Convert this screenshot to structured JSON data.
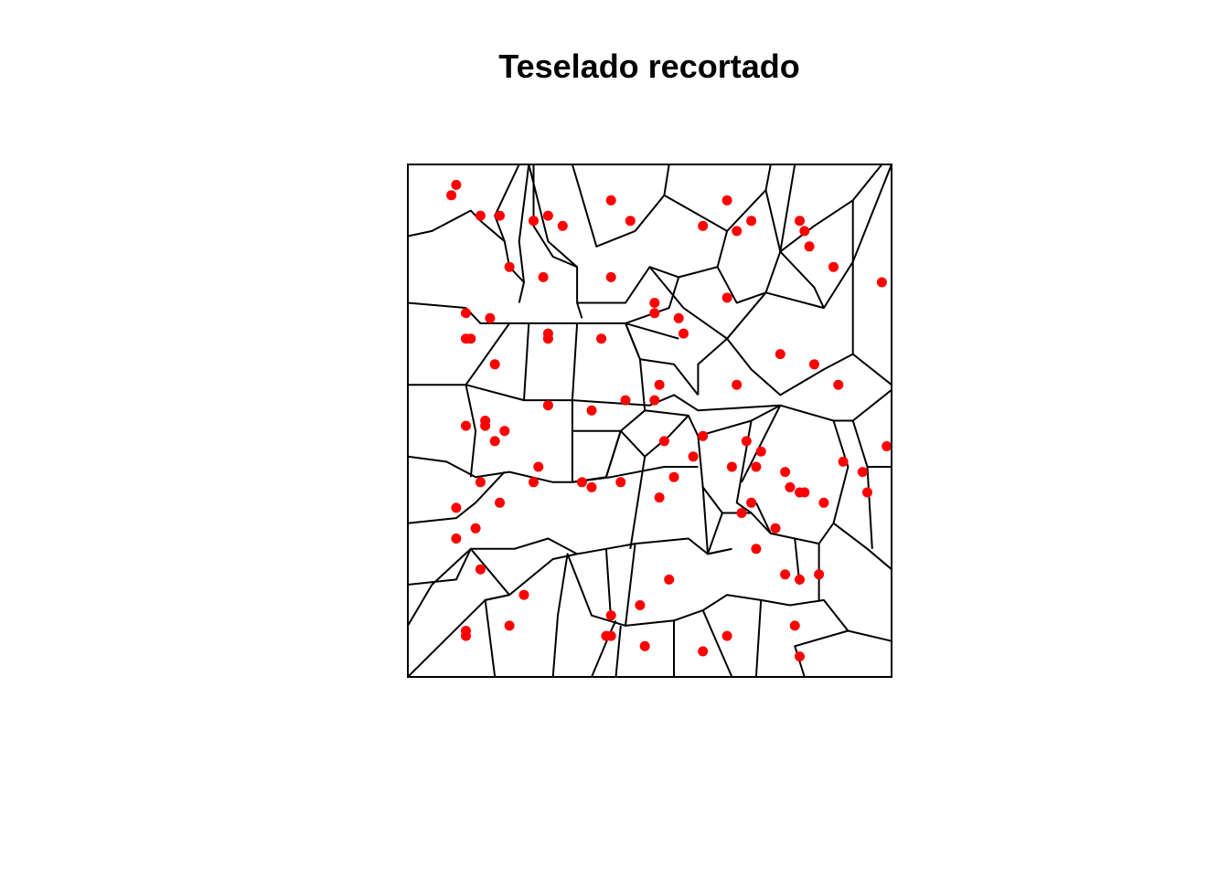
{
  "chart_data": {
    "type": "scatter",
    "title": "Teselado recortado",
    "xlabel": "",
    "ylabel": "",
    "xlim": [
      0,
      1
    ],
    "ylim": [
      0,
      1
    ],
    "axes_visible": false,
    "grid": false,
    "legend": "none",
    "point_color": "#ff0000",
    "edge_color": "#000000",
    "points": [
      [
        0.1,
        0.96
      ],
      [
        0.09,
        0.94
      ],
      [
        0.15,
        0.9
      ],
      [
        0.19,
        0.9
      ],
      [
        0.26,
        0.89
      ],
      [
        0.29,
        0.9
      ],
      [
        0.32,
        0.88
      ],
      [
        0.42,
        0.93
      ],
      [
        0.46,
        0.89
      ],
      [
        0.66,
        0.93
      ],
      [
        0.61,
        0.88
      ],
      [
        0.68,
        0.87
      ],
      [
        0.71,
        0.89
      ],
      [
        0.81,
        0.89
      ],
      [
        0.82,
        0.87
      ],
      [
        0.83,
        0.84
      ],
      [
        0.21,
        0.8
      ],
      [
        0.28,
        0.78
      ],
      [
        0.42,
        0.78
      ],
      [
        0.88,
        0.8
      ],
      [
        0.98,
        0.77
      ],
      [
        0.12,
        0.71
      ],
      [
        0.17,
        0.7
      ],
      [
        0.51,
        0.73
      ],
      [
        0.51,
        0.71
      ],
      [
        0.56,
        0.7
      ],
      [
        0.66,
        0.74
      ],
      [
        0.29,
        0.67
      ],
      [
        0.29,
        0.66
      ],
      [
        0.4,
        0.66
      ],
      [
        0.12,
        0.66
      ],
      [
        0.13,
        0.66
      ],
      [
        0.57,
        0.67
      ],
      [
        0.77,
        0.63
      ],
      [
        0.84,
        0.61
      ],
      [
        0.18,
        0.61
      ],
      [
        0.68,
        0.57
      ],
      [
        0.89,
        0.57
      ],
      [
        0.52,
        0.57
      ],
      [
        0.51,
        0.54
      ],
      [
        0.29,
        0.53
      ],
      [
        0.38,
        0.52
      ],
      [
        0.45,
        0.54
      ],
      [
        0.12,
        0.49
      ],
      [
        0.16,
        0.5
      ],
      [
        0.16,
        0.49
      ],
      [
        0.2,
        0.48
      ],
      [
        0.18,
        0.46
      ],
      [
        0.53,
        0.46
      ],
      [
        0.61,
        0.47
      ],
      [
        0.7,
        0.46
      ],
      [
        0.73,
        0.44
      ],
      [
        0.99,
        0.45
      ],
      [
        0.27,
        0.41
      ],
      [
        0.59,
        0.43
      ],
      [
        0.67,
        0.41
      ],
      [
        0.72,
        0.41
      ],
      [
        0.78,
        0.4
      ],
      [
        0.9,
        0.42
      ],
      [
        0.94,
        0.4
      ],
      [
        0.15,
        0.38
      ],
      [
        0.26,
        0.38
      ],
      [
        0.36,
        0.38
      ],
      [
        0.38,
        0.37
      ],
      [
        0.44,
        0.38
      ],
      [
        0.55,
        0.39
      ],
      [
        0.79,
        0.37
      ],
      [
        0.81,
        0.36
      ],
      [
        0.82,
        0.36
      ],
      [
        0.95,
        0.36
      ],
      [
        0.1,
        0.33
      ],
      [
        0.19,
        0.34
      ],
      [
        0.52,
        0.35
      ],
      [
        0.71,
        0.34
      ],
      [
        0.86,
        0.34
      ],
      [
        0.69,
        0.32
      ],
      [
        0.14,
        0.29
      ],
      [
        0.1,
        0.27
      ],
      [
        0.76,
        0.29
      ],
      [
        0.72,
        0.25
      ],
      [
        0.15,
        0.21
      ],
      [
        0.54,
        0.19
      ],
      [
        0.78,
        0.2
      ],
      [
        0.81,
        0.19
      ],
      [
        0.85,
        0.2
      ],
      [
        0.24,
        0.16
      ],
      [
        0.48,
        0.14
      ],
      [
        0.42,
        0.12
      ],
      [
        0.12,
        0.09
      ],
      [
        0.21,
        0.1
      ],
      [
        0.12,
        0.08
      ],
      [
        0.41,
        0.08
      ],
      [
        0.42,
        0.08
      ],
      [
        0.66,
        0.08
      ],
      [
        0.8,
        0.1
      ],
      [
        0.49,
        0.06
      ],
      [
        0.61,
        0.05
      ],
      [
        0.81,
        0.04
      ]
    ],
    "edges": [
      [
        [
          0.0,
          0.86
        ],
        [
          0.05,
          0.87
        ],
        [
          0.13,
          0.91
        ],
        [
          0.15,
          0.89
        ],
        [
          0.2,
          0.85
        ]
      ],
      [
        [
          0.0,
          0.73
        ],
        [
          0.12,
          0.72
        ],
        [
          0.15,
          0.69
        ],
        [
          0.21,
          0.69
        ],
        [
          0.25,
          0.69
        ],
        [
          0.35,
          0.69
        ],
        [
          0.45,
          0.69
        ],
        [
          0.56,
          0.66
        ]
      ],
      [
        [
          0.0,
          0.57
        ],
        [
          0.12,
          0.57
        ],
        [
          0.24,
          0.54
        ],
        [
          0.34,
          0.54
        ],
        [
          0.5,
          0.53
        ],
        [
          0.55,
          0.55
        ],
        [
          0.6,
          0.52
        ],
        [
          0.77,
          0.53
        ],
        [
          0.88,
          0.5
        ],
        [
          0.92,
          0.5
        ],
        [
          1.0,
          0.56
        ]
      ],
      [
        [
          0.0,
          0.43
        ],
        [
          0.08,
          0.42
        ],
        [
          0.14,
          0.39
        ],
        [
          0.21,
          0.4
        ],
        [
          0.3,
          0.38
        ],
        [
          0.34,
          0.38
        ],
        [
          0.42,
          0.39
        ],
        [
          0.53,
          0.41
        ],
        [
          0.6,
          0.41
        ]
      ],
      [
        [
          0.0,
          0.3
        ],
        [
          0.1,
          0.31
        ],
        [
          0.14,
          0.34
        ],
        [
          0.2,
          0.4
        ]
      ],
      [
        [
          0.0,
          0.18
        ],
        [
          0.1,
          0.19
        ],
        [
          0.13,
          0.25
        ],
        [
          0.22,
          0.25
        ],
        [
          0.29,
          0.27
        ],
        [
          0.35,
          0.24
        ],
        [
          0.41,
          0.25
        ],
        [
          0.47,
          0.26
        ],
        [
          0.58,
          0.27
        ],
        [
          0.62,
          0.24
        ],
        [
          0.67,
          0.25
        ]
      ],
      [
        [
          0.0,
          0.0
        ],
        [
          0.16,
          0.15
        ],
        [
          0.21,
          0.16
        ],
        [
          0.3,
          0.23
        ],
        [
          0.35,
          0.24
        ]
      ],
      [
        [
          0.18,
          0.0
        ],
        [
          0.16,
          0.15
        ],
        [
          0.21,
          0.16
        ],
        [
          0.13,
          0.25
        ],
        [
          0.05,
          0.18
        ]
      ],
      [
        [
          0.3,
          0.0
        ],
        [
          0.31,
          0.12
        ],
        [
          0.33,
          0.24
        ],
        [
          0.38,
          0.12
        ],
        [
          0.45,
          0.1
        ],
        [
          0.55,
          0.11
        ],
        [
          0.61,
          0.13
        ],
        [
          0.66,
          0.16
        ],
        [
          0.73,
          0.15
        ],
        [
          0.79,
          0.14
        ],
        [
          0.86,
          0.15
        ],
        [
          0.91,
          0.09
        ],
        [
          1.0,
          0.07
        ]
      ],
      [
        [
          0.38,
          0.0
        ],
        [
          0.42,
          0.09
        ],
        [
          0.43,
          0.11
        ]
      ],
      [
        [
          0.43,
          0.0
        ],
        [
          0.44,
          0.1
        ]
      ],
      [
        [
          0.55,
          0.0
        ],
        [
          0.55,
          0.11
        ]
      ],
      [
        [
          0.67,
          0.0
        ],
        [
          0.61,
          0.13
        ]
      ],
      [
        [
          0.72,
          0.0
        ],
        [
          0.73,
          0.15
        ]
      ],
      [
        [
          0.82,
          0.0
        ],
        [
          0.8,
          0.06
        ],
        [
          0.91,
          0.09
        ]
      ],
      [
        [
          0.23,
          1.0
        ],
        [
          0.18,
          0.9
        ],
        [
          0.2,
          0.85
        ],
        [
          0.21,
          0.8
        ],
        [
          0.24,
          0.77
        ],
        [
          0.23,
          0.73
        ]
      ],
      [
        [
          0.25,
          1.0
        ],
        [
          0.23,
          0.85
        ],
        [
          0.24,
          0.77
        ]
      ],
      [
        [
          0.26,
          1.0
        ],
        [
          0.26,
          0.88
        ],
        [
          0.3,
          0.82
        ],
        [
          0.35,
          0.8
        ],
        [
          0.35,
          0.73
        ],
        [
          0.36,
          0.7
        ]
      ],
      [
        [
          0.25,
          1.0
        ],
        [
          0.29,
          0.85
        ],
        [
          0.35,
          0.8
        ]
      ],
      [
        [
          0.34,
          1.0
        ],
        [
          0.39,
          0.84
        ],
        [
          0.47,
          0.87
        ],
        [
          0.53,
          0.94
        ],
        [
          0.54,
          1.0
        ]
      ],
      [
        [
          0.53,
          0.94
        ],
        [
          0.66,
          0.87
        ],
        [
          0.74,
          0.95
        ],
        [
          0.75,
          1.0
        ]
      ],
      [
        [
          0.66,
          0.87
        ],
        [
          0.64,
          0.8
        ],
        [
          0.56,
          0.78
        ],
        [
          0.5,
          0.8
        ],
        [
          0.45,
          0.73
        ],
        [
          0.35,
          0.73
        ]
      ],
      [
        [
          0.74,
          0.95
        ],
        [
          0.77,
          0.83
        ],
        [
          0.84,
          0.88
        ],
        [
          0.92,
          0.93
        ],
        [
          0.98,
          1.0
        ]
      ],
      [
        [
          0.77,
          0.83
        ],
        [
          0.74,
          0.75
        ],
        [
          0.68,
          0.73
        ],
        [
          0.64,
          0.8
        ]
      ],
      [
        [
          0.8,
          1.0
        ],
        [
          0.77,
          0.83
        ]
      ],
      [
        [
          0.92,
          0.93
        ],
        [
          0.92,
          0.81
        ],
        [
          0.86,
          0.72
        ],
        [
          0.84,
          0.76
        ],
        [
          0.77,
          0.83
        ]
      ],
      [
        [
          1.0,
          1.0
        ],
        [
          0.92,
          0.81
        ],
        [
          0.92,
          0.63
        ],
        [
          1.0,
          0.57
        ]
      ],
      [
        [
          0.86,
          0.72
        ],
        [
          0.74,
          0.75
        ]
      ],
      [
        [
          0.74,
          0.75
        ],
        [
          0.66,
          0.66
        ],
        [
          0.71,
          0.6
        ],
        [
          0.77,
          0.55
        ],
        [
          0.86,
          0.6
        ],
        [
          0.92,
          0.63
        ]
      ],
      [
        [
          0.56,
          0.78
        ],
        [
          0.54,
          0.72
        ],
        [
          0.45,
          0.69
        ],
        [
          0.48,
          0.62
        ],
        [
          0.55,
          0.61
        ],
        [
          0.6,
          0.55
        ]
      ],
      [
        [
          0.5,
          0.8
        ],
        [
          0.57,
          0.72
        ],
        [
          0.66,
          0.66
        ]
      ],
      [
        [
          0.66,
          0.66
        ],
        [
          0.6,
          0.61
        ],
        [
          0.6,
          0.55
        ]
      ],
      [
        [
          0.35,
          0.69
        ],
        [
          0.34,
          0.54
        ],
        [
          0.34,
          0.38
        ]
      ],
      [
        [
          0.25,
          0.69
        ],
        [
          0.24,
          0.54
        ]
      ],
      [
        [
          0.21,
          0.69
        ],
        [
          0.15,
          0.61
        ],
        [
          0.12,
          0.57
        ],
        [
          0.14,
          0.48
        ],
        [
          0.13,
          0.39
        ]
      ],
      [
        [
          0.45,
          0.69
        ],
        [
          0.48,
          0.62
        ],
        [
          0.49,
          0.52
        ],
        [
          0.44,
          0.48
        ],
        [
          0.34,
          0.48
        ]
      ],
      [
        [
          0.49,
          0.52
        ],
        [
          0.58,
          0.51
        ],
        [
          0.6,
          0.47
        ],
        [
          0.71,
          0.5
        ],
        [
          0.77,
          0.53
        ]
      ],
      [
        [
          0.58,
          0.51
        ],
        [
          0.54,
          0.47
        ],
        [
          0.49,
          0.43
        ],
        [
          0.44,
          0.48
        ]
      ],
      [
        [
          0.44,
          0.48
        ],
        [
          0.41,
          0.39
        ],
        [
          0.34,
          0.38
        ]
      ],
      [
        [
          0.44,
          0.48
        ],
        [
          0.41,
          0.39
        ]
      ],
      [
        [
          0.49,
          0.43
        ],
        [
          0.46,
          0.25
        ]
      ],
      [
        [
          0.6,
          0.47
        ],
        [
          0.61,
          0.37
        ],
        [
          0.65,
          0.32
        ],
        [
          0.71,
          0.32
        ],
        [
          0.75,
          0.28
        ],
        [
          0.8,
          0.27
        ],
        [
          0.85,
          0.26
        ],
        [
          0.88,
          0.3
        ]
      ],
      [
        [
          0.71,
          0.5
        ],
        [
          0.68,
          0.34
        ],
        [
          0.71,
          0.32
        ]
      ],
      [
        [
          0.77,
          0.53
        ],
        [
          0.69,
          0.38
        ]
      ],
      [
        [
          0.88,
          0.5
        ],
        [
          0.91,
          0.41
        ],
        [
          0.88,
          0.3
        ],
        [
          0.95,
          0.25
        ],
        [
          1.0,
          0.21
        ]
      ],
      [
        [
          0.92,
          0.5
        ],
        [
          0.95,
          0.41
        ],
        [
          0.96,
          0.25
        ]
      ],
      [
        [
          0.95,
          0.41
        ],
        [
          1.0,
          0.41
        ]
      ],
      [
        [
          0.61,
          0.37
        ],
        [
          0.62,
          0.24
        ],
        [
          0.67,
          0.25
        ]
      ],
      [
        [
          0.65,
          0.32
        ],
        [
          0.62,
          0.24
        ]
      ],
      [
        [
          0.75,
          0.28
        ],
        [
          0.72,
          0.34
        ]
      ],
      [
        [
          0.8,
          0.27
        ],
        [
          0.81,
          0.18
        ]
      ],
      [
        [
          0.85,
          0.26
        ],
        [
          0.85,
          0.15
        ]
      ],
      [
        [
          0.0,
          0.1
        ],
        [
          0.05,
          0.18
        ]
      ],
      [
        [
          0.47,
          0.26
        ],
        [
          0.45,
          0.1
        ]
      ],
      [
        [
          0.41,
          0.25
        ],
        [
          0.42,
          0.11
        ]
      ]
    ]
  }
}
